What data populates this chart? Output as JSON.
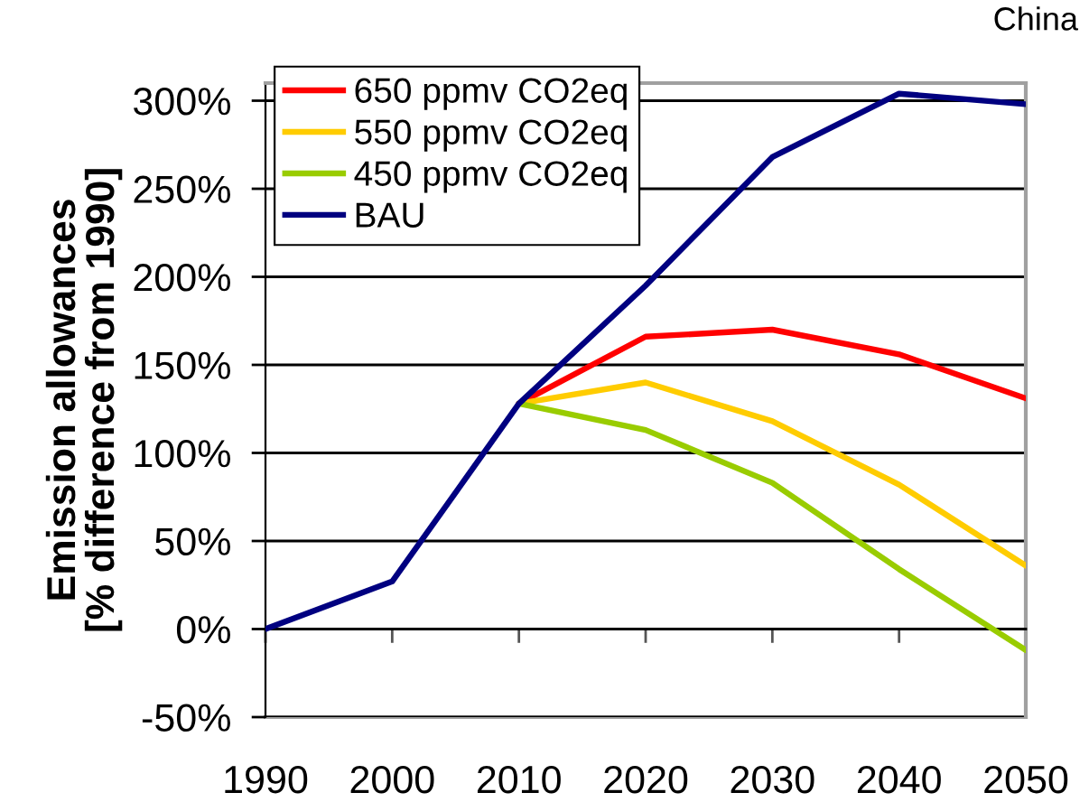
{
  "chart_data": {
    "type": "line",
    "title": "China",
    "ylabel": "Emission allowances\n[% difference from 1990]",
    "x": [
      1990,
      2000,
      2010,
      2020,
      2030,
      2040,
      2050
    ],
    "xlim": [
      1990,
      2050
    ],
    "xticks": [
      1990,
      2000,
      2010,
      2020,
      2030,
      2040,
      2050
    ],
    "ylim": [
      -50,
      310
    ],
    "yticks": [
      {
        "value": -50,
        "label": "-50%"
      },
      {
        "value": 0,
        "label": "0%"
      },
      {
        "value": 50,
        "label": "50%"
      },
      {
        "value": 100,
        "label": "100%"
      },
      {
        "value": 150,
        "label": "150%"
      },
      {
        "value": 200,
        "label": "200%"
      },
      {
        "value": 250,
        "label": "250%"
      },
      {
        "value": 300,
        "label": "300%"
      }
    ],
    "series": [
      {
        "name": "650 ppmv CO2eq",
        "color": "#ff0000",
        "values": [
          null,
          null,
          128,
          166,
          170,
          156,
          131
        ]
      },
      {
        "name": "550 ppmv CO2eq",
        "color": "#ffcc00",
        "values": [
          null,
          null,
          128,
          140,
          118,
          82,
          36
        ]
      },
      {
        "name": "450 ppmv CO2eq",
        "color": "#99cc00",
        "values": [
          null,
          null,
          128,
          113,
          83,
          34,
          -12
        ]
      },
      {
        "name": "BAU",
        "color": "#000080",
        "values": [
          0,
          27,
          128,
          195,
          268,
          304,
          298
        ]
      }
    ],
    "grid": "y",
    "legend": "top left",
    "marker": "none",
    "line_style": "solid"
  }
}
